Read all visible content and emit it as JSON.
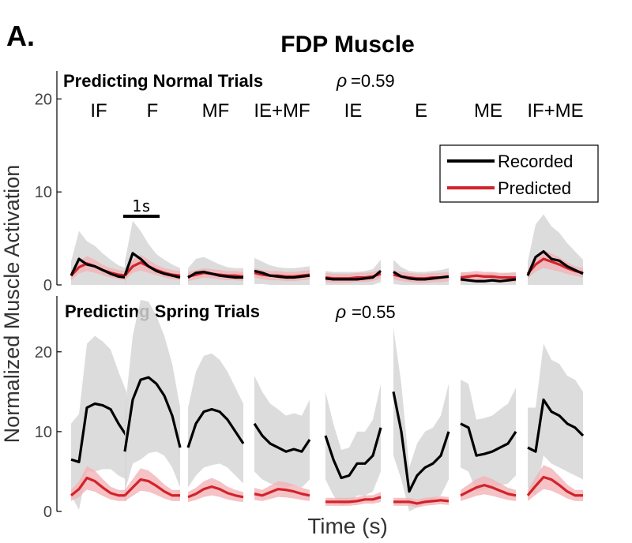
{
  "figure": {
    "panel_letter": "A.",
    "title": "FDP Muscle",
    "ylabel": "Normalized Muscle Activation",
    "xlabel": "Time (s)",
    "legend": {
      "placement": "top-right of upper panel",
      "entries": [
        {
          "label": "Recorded",
          "color": "#000000"
        },
        {
          "label": "Predicted",
          "color": "#d2232a"
        }
      ]
    },
    "scale_bar": {
      "label": "1s",
      "seconds": 1
    }
  },
  "chart_data": [
    {
      "type": "line",
      "title": "Predicting Normal Trials",
      "correlation_symbol": "ρ",
      "correlation_value": "=0.59",
      "ylim": [
        0,
        23
      ],
      "yticks": [
        0,
        10,
        20
      ],
      "conditions": [
        "IF",
        "F",
        "MF",
        "IE+MF",
        "IE",
        "E",
        "ME",
        "IF+ME"
      ],
      "segment_duration_s": 1.5,
      "series": [
        {
          "name": "Recorded",
          "color": "#000000",
          "values": [
            [
              1.0,
              2.8,
              2.2,
              2.0,
              1.6,
              1.2,
              0.9,
              0.8
            ],
            [
              1.0,
              3.4,
              2.8,
              2.0,
              1.5,
              1.2,
              1.0,
              0.8
            ],
            [
              0.8,
              1.3,
              1.4,
              1.2,
              1.0,
              0.9,
              0.8,
              0.8
            ],
            [
              1.5,
              1.3,
              1.0,
              0.9,
              0.8,
              0.8,
              0.9,
              1.0
            ],
            [
              0.7,
              0.6,
              0.6,
              0.6,
              0.6,
              0.7,
              0.8,
              1.5
            ],
            [
              1.4,
              0.9,
              0.7,
              0.6,
              0.6,
              0.7,
              0.8,
              0.9
            ],
            [
              0.6,
              0.5,
              0.4,
              0.4,
              0.5,
              0.4,
              0.5,
              0.6
            ],
            [
              1.0,
              3.0,
              3.6,
              2.8,
              2.6,
              2.0,
              1.6,
              1.2
            ]
          ]
        },
        {
          "name": "Predicted",
          "color": "#d2232a",
          "values": [
            [
              1.0,
              1.9,
              2.3,
              2.0,
              1.6,
              1.3,
              1.1,
              1.0
            ],
            [
              1.0,
              2.0,
              2.4,
              2.0,
              1.6,
              1.3,
              1.1,
              1.0
            ],
            [
              0.9,
              1.1,
              1.3,
              1.2,
              1.1,
              1.0,
              1.0,
              0.9
            ],
            [
              1.3,
              1.1,
              1.0,
              1.0,
              0.9,
              0.9,
              1.0,
              1.1
            ],
            [
              0.8,
              0.7,
              0.7,
              0.7,
              0.8,
              0.8,
              0.9,
              1.2
            ],
            [
              1.1,
              0.9,
              0.8,
              0.7,
              0.7,
              0.8,
              0.8,
              0.9
            ],
            [
              0.8,
              0.9,
              1.0,
              0.9,
              0.9,
              0.8,
              0.8,
              0.8
            ],
            [
              1.2,
              2.2,
              2.8,
              2.5,
              2.2,
              1.8,
              1.5,
              1.3
            ]
          ]
        }
      ],
      "band_halfwidth": [
        [
          1.5,
          3.0,
          2.5,
          2.2,
          1.8,
          1.5,
          1.2,
          1.0
        ],
        [
          1.5,
          3.5,
          3.0,
          2.4,
          1.8,
          1.5,
          1.2,
          1.0
        ],
        [
          1.0,
          1.5,
          1.6,
          1.4,
          1.2,
          1.0,
          1.0,
          1.0
        ],
        [
          1.4,
          1.2,
          1.1,
          1.0,
          1.0,
          1.0,
          1.0,
          1.0
        ],
        [
          0.8,
          0.8,
          0.8,
          0.8,
          0.8,
          0.8,
          0.9,
          1.2
        ],
        [
          1.3,
          1.0,
          0.8,
          0.8,
          0.8,
          0.8,
          0.8,
          0.9
        ],
        [
          0.8,
          0.8,
          0.8,
          0.8,
          0.8,
          0.8,
          0.8,
          0.8
        ],
        [
          1.5,
          3.5,
          4.0,
          3.5,
          3.0,
          2.5,
          2.0,
          1.5
        ]
      ]
    },
    {
      "type": "line",
      "title": "Predicting Spring Trials",
      "correlation_symbol": "ρ",
      "correlation_value": "=0.55",
      "ylim": [
        0,
        27
      ],
      "yticks": [
        0,
        10,
        20
      ],
      "conditions": [
        "IF",
        "F",
        "MF",
        "IE+MF",
        "IE",
        "E",
        "ME",
        "IF+ME"
      ],
      "segment_duration_s": 1.5,
      "series": [
        {
          "name": "Recorded",
          "color": "#000000",
          "values": [
            [
              6.5,
              6.2,
              13.0,
              13.5,
              13.3,
              12.8,
              11.0,
              9.5
            ],
            [
              7.5,
              14.0,
              16.5,
              16.8,
              16.0,
              14.5,
              12.0,
              8.0
            ],
            [
              8.0,
              11.0,
              12.5,
              12.8,
              12.5,
              11.5,
              10.0,
              8.5
            ],
            [
              11.0,
              9.5,
              8.5,
              8.0,
              7.5,
              7.8,
              7.5,
              9.0
            ],
            [
              9.5,
              6.5,
              4.2,
              4.5,
              6.0,
              6.0,
              7.0,
              10.5
            ],
            [
              15.0,
              10.0,
              2.5,
              4.5,
              5.5,
              6.0,
              7.0,
              10.0
            ],
            [
              11.0,
              10.5,
              7.0,
              7.2,
              7.5,
              8.0,
              8.5,
              10.0
            ],
            [
              8.0,
              7.5,
              14.0,
              12.5,
              12.0,
              11.0,
              10.5,
              9.5
            ]
          ]
        },
        {
          "name": "Predicted",
          "color": "#d2232a",
          "values": [
            [
              2.0,
              2.8,
              4.2,
              3.8,
              3.0,
              2.3,
              2.0,
              2.0
            ],
            [
              2.0,
              3.0,
              4.0,
              3.8,
              3.2,
              2.5,
              2.0,
              2.0
            ],
            [
              1.8,
              2.2,
              2.8,
              3.1,
              2.8,
              2.3,
              2.0,
              1.8
            ],
            [
              2.2,
              2.0,
              2.4,
              2.8,
              2.7,
              2.5,
              2.2,
              2.0
            ],
            [
              1.2,
              1.2,
              1.2,
              1.2,
              1.3,
              1.5,
              1.5,
              1.8
            ],
            [
              1.2,
              1.2,
              1.2,
              1.0,
              1.2,
              1.3,
              1.4,
              1.3
            ],
            [
              2.0,
              2.5,
              3.0,
              3.3,
              3.0,
              2.6,
              2.2,
              2.0
            ],
            [
              2.0,
              3.2,
              4.3,
              4.0,
              3.3,
              2.5,
              2.0,
              2.0
            ]
          ]
        }
      ],
      "band_halfwidth": [
        [
          4.5,
          6.0,
          8.0,
          8.5,
          8.0,
          7.5,
          6.5,
          5.5
        ],
        [
          5.0,
          8.0,
          10.0,
          9.5,
          8.5,
          7.5,
          6.5,
          5.0
        ],
        [
          5.0,
          6.5,
          7.0,
          7.0,
          6.5,
          6.0,
          5.5,
          5.0
        ],
        [
          6.0,
          5.5,
          5.0,
          4.8,
          4.5,
          4.5,
          4.5,
          5.0
        ],
        [
          5.5,
          4.5,
          3.5,
          3.5,
          4.0,
          4.0,
          4.5,
          5.5
        ],
        [
          8.0,
          6.0,
          3.0,
          4.0,
          4.5,
          4.5,
          5.0,
          6.0
        ],
        [
          5.5,
          5.5,
          4.5,
          4.5,
          4.5,
          4.8,
          5.0,
          5.5
        ],
        [
          5.0,
          5.5,
          7.0,
          6.5,
          6.5,
          6.0,
          6.0,
          5.5
        ]
      ]
    }
  ]
}
